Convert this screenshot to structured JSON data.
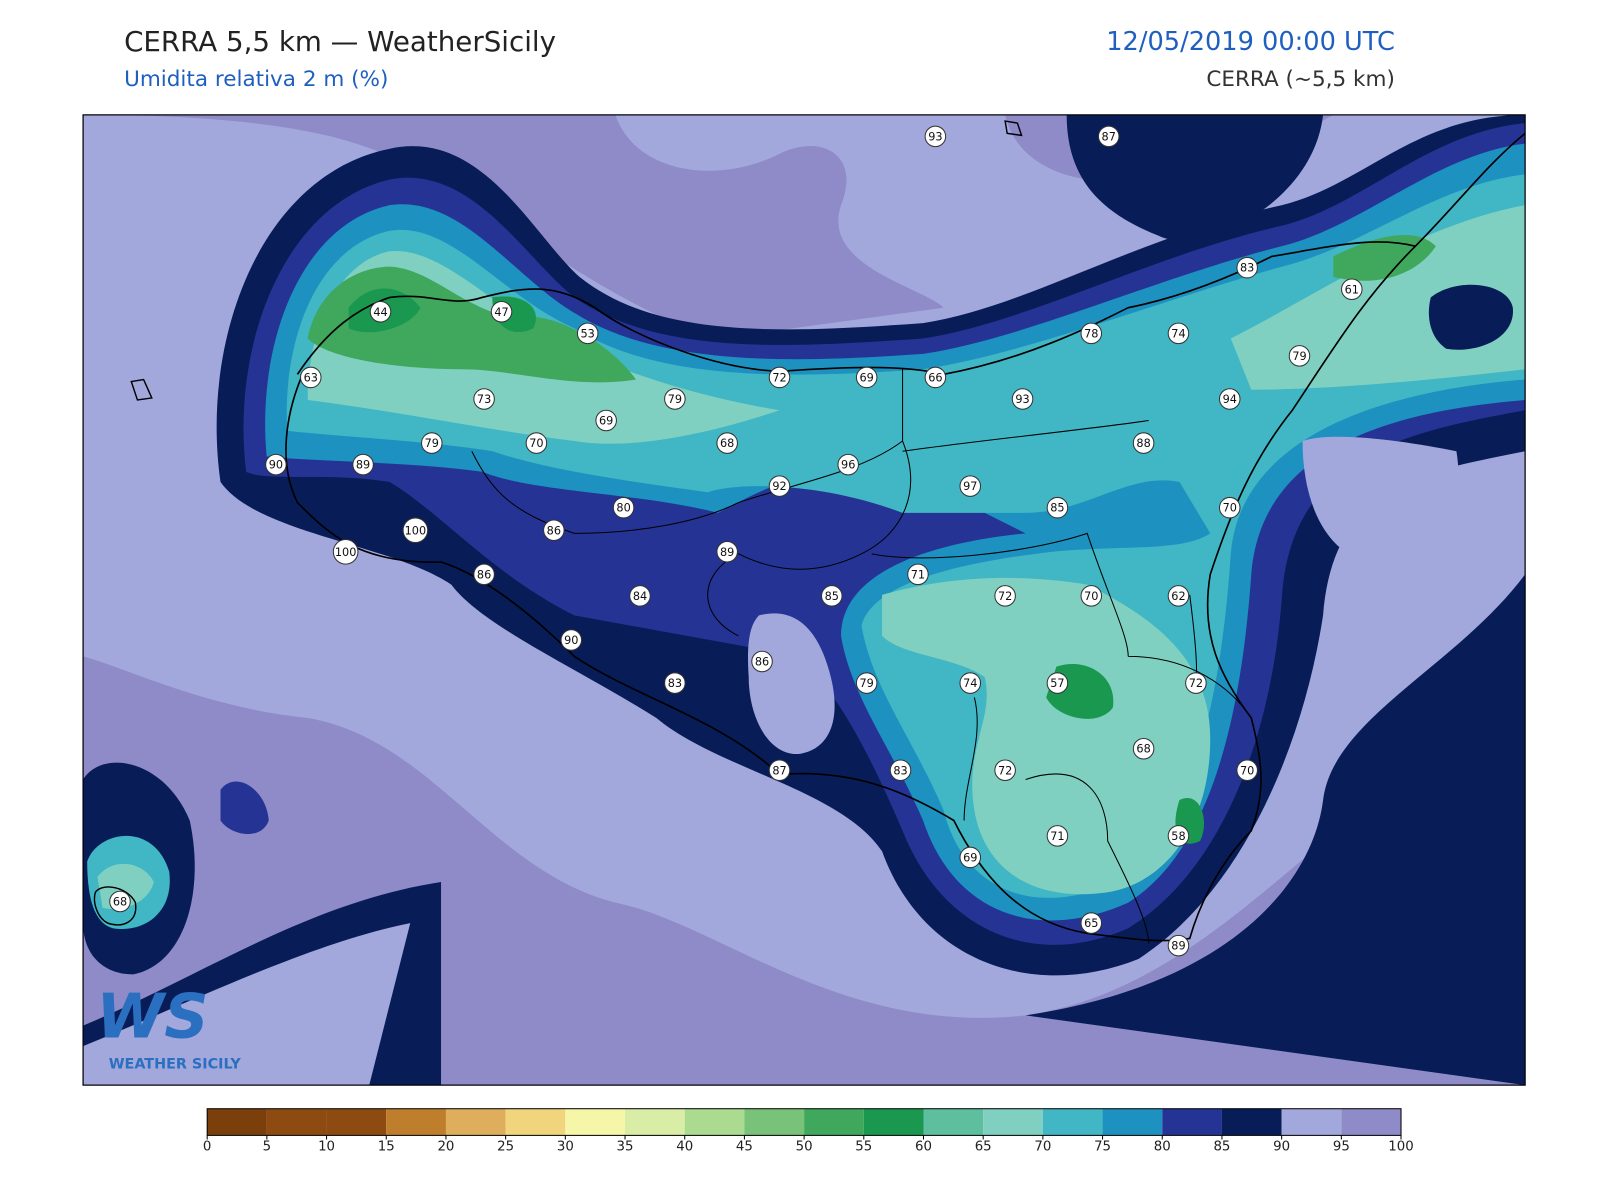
{
  "header": {
    "title": "CERRA 5,5 km — WeatherSicily",
    "subtitle": "Umidita relativa 2 m (%)",
    "datetime": "12/05/2019 00:00 UTC",
    "model": "CERRA (~5,5 km)"
  },
  "stations": [
    93,
    87,
    44,
    47,
    53,
    63,
    73,
    79,
    69,
    72,
    69,
    66,
    78,
    74,
    83,
    61,
    79,
    93,
    94,
    79,
    70,
    68,
    90,
    89,
    96,
    92,
    97,
    88,
    80,
    85,
    70,
    86,
    100,
    100,
    89,
    86,
    84,
    85,
    71,
    72,
    70,
    62,
    90,
    86,
    83,
    79,
    74,
    57,
    72,
    68,
    70,
    87,
    83,
    72,
    71,
    58,
    69,
    65,
    89,
    68
  ],
  "colorbar": {
    "ticks": [
      0,
      5,
      10,
      15,
      20,
      25,
      30,
      35,
      40,
      45,
      50,
      55,
      60,
      65,
      70,
      75,
      80,
      85,
      90,
      95,
      100
    ],
    "colors": [
      "#7a3f0a",
      "#8e4b11",
      "#8e4b11",
      "#bf7e2c",
      "#dfae5c",
      "#f0d57c",
      "#f6f6a8",
      "#d9eda6",
      "#abdb8e",
      "#78c27a",
      "#3fa85c",
      "#1a9850",
      "#5dbf9e",
      "#7fd0c0",
      "#41b6c4",
      "#1d91c0",
      "#253494",
      "#081d58",
      "#a3a8dc",
      "#8f8bc8"
    ]
  },
  "logo": {
    "mark": "WS",
    "text": "WEATHER SICILY"
  }
}
